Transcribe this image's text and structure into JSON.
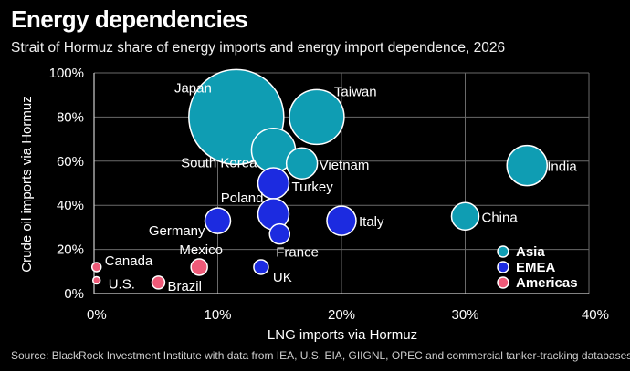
{
  "title": "Energy dependencies",
  "subtitle": "Strait of Hormuz share of energy imports and energy import dependence, 2026",
  "source": "Source: BlackRock Investment Institute with data from IEA, U.S. EIA, GIIGNL, OPEC and commercial tanker-tracking databases,",
  "colors": {
    "Asia": "#0f9db3",
    "EMEA": "#1c2be0",
    "Americas": "#ee5a78",
    "grid": "#6a6a6a"
  },
  "chart_data": {
    "type": "scatter",
    "title": "Energy dependencies",
    "subtitle": "Strait of Hormuz share of energy imports and energy import dependence, 2026",
    "xlabel": "LNG imports via Hormuz",
    "ylabel": "Crude oil imports via Hormuz",
    "xlim": [
      0,
      40
    ],
    "ylim": [
      0,
      100
    ],
    "xticks": [
      "0%",
      "10%",
      "20%",
      "30%",
      "40%"
    ],
    "yticks": [
      "0%",
      "20%",
      "40%",
      "60%",
      "80%",
      "100%"
    ],
    "grid": true,
    "legend": {
      "position": "bottom-right",
      "entries": [
        "Asia",
        "EMEA",
        "Americas"
      ]
    },
    "series": [
      {
        "name": "Asia",
        "points": [
          {
            "label": "Japan",
            "x": 11.5,
            "y": 80,
            "size": 52
          },
          {
            "label": "Taiwan",
            "x": 18,
            "y": 80,
            "size": 30
          },
          {
            "label": "South Korea",
            "x": 14.5,
            "y": 65,
            "size": 24
          },
          {
            "label": "Vietnam",
            "x": 16.8,
            "y": 59,
            "size": 17
          },
          {
            "label": "India",
            "x": 35,
            "y": 58,
            "size": 22
          },
          {
            "label": "China",
            "x": 30,
            "y": 35,
            "size": 15
          }
        ]
      },
      {
        "name": "EMEA",
        "points": [
          {
            "label": "Turkey",
            "x": 14.5,
            "y": 50,
            "size": 17
          },
          {
            "label": "Poland",
            "x": 14.5,
            "y": 36,
            "size": 17
          },
          {
            "label": "Germany",
            "x": 10,
            "y": 33,
            "size": 14
          },
          {
            "label": "Italy",
            "x": 20,
            "y": 33,
            "size": 16
          },
          {
            "label": "France",
            "x": 15,
            "y": 27,
            "size": 11
          },
          {
            "label": "UK",
            "x": 13.5,
            "y": 12,
            "size": 8
          }
        ]
      },
      {
        "name": "Americas",
        "points": [
          {
            "label": "Mexico",
            "x": 8.5,
            "y": 12,
            "size": 9
          },
          {
            "label": "Canada",
            "x": 0.2,
            "y": 12,
            "size": 5
          },
          {
            "label": "U.S.",
            "x": 0.2,
            "y": 6,
            "size": 4
          },
          {
            "label": "Brazil",
            "x": 5.2,
            "y": 5,
            "size": 7
          }
        ]
      }
    ]
  }
}
